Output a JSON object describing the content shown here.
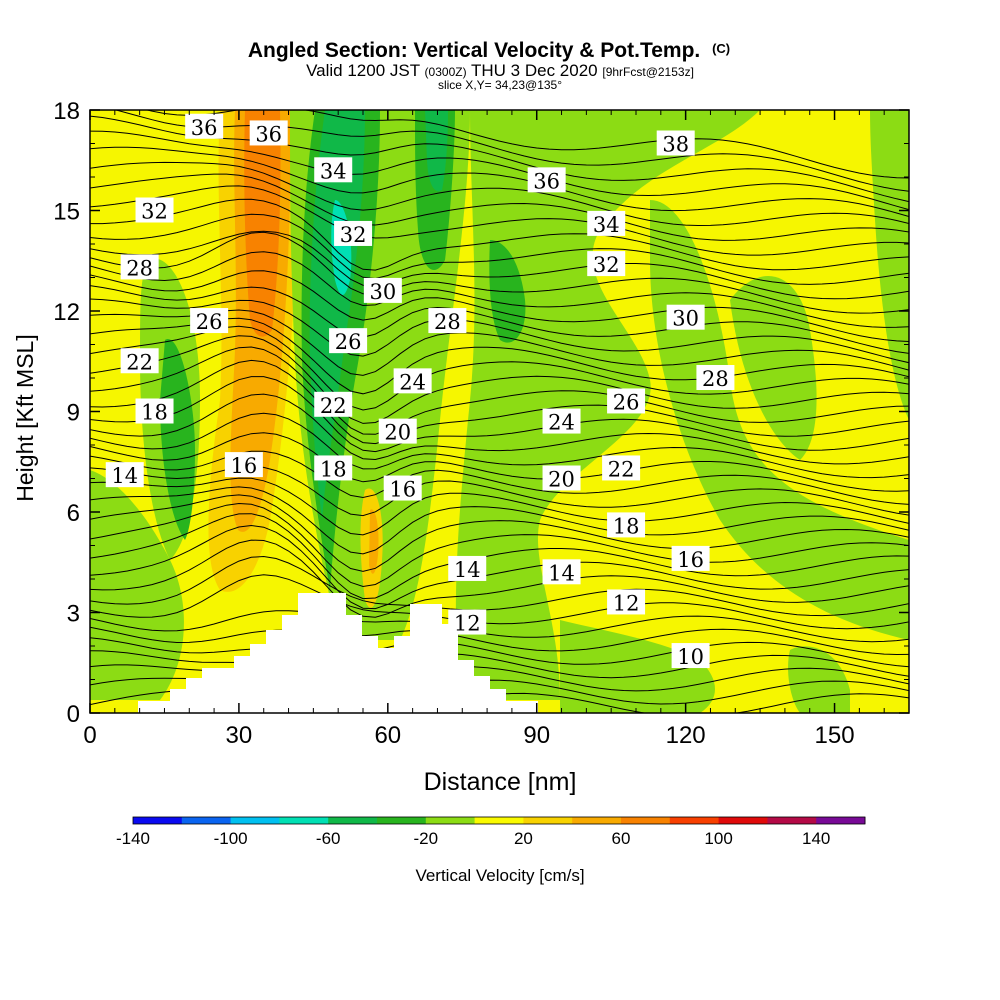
{
  "chart_data": {
    "type": "heatmap",
    "title": "Angled Section: Vertical Velocity & Pot.Temp.",
    "title_mark": "(C)",
    "subtitle_parts": [
      "Valid 1200 JST",
      "(0300Z)",
      "THU 3 Dec 2020",
      "[9hrFcst@2153z]"
    ],
    "slice_note": "slice X,Y= 34,23@135°",
    "xlabel": "Distance [nm]",
    "ylabel": "Height [Kft MSL]",
    "xlim": [
      0,
      165
    ],
    "ylim": [
      0,
      18
    ],
    "x_ticks": [
      "0",
      "30",
      "60",
      "90",
      "120",
      "150"
    ],
    "y_ticks": [
      "0",
      "3",
      "6",
      "9",
      "12",
      "15",
      "18"
    ],
    "colorbar": {
      "label": "Vertical Velocity [cm/s]",
      "tick_labels": [
        "-140",
        "-100",
        "-60",
        "-20",
        "20",
        "60",
        "100",
        "140"
      ],
      "colors": [
        "#0a0af0",
        "#0a64f0",
        "#00c0f0",
        "#00e0b4",
        "#10b848",
        "#28b41e",
        "#8cdc14",
        "#fafa00",
        "#f8d200",
        "#f8aa00",
        "#f88200",
        "#f84000",
        "#e00a0a",
        "#b40a46",
        "#780a96"
      ]
    },
    "contour_labels": [
      {
        "text": "36",
        "x": 23,
        "y": 17.5
      },
      {
        "text": "36",
        "x": 36,
        "y": 17.3
      },
      {
        "text": "34",
        "x": 49,
        "y": 16.2
      },
      {
        "text": "32",
        "x": 13,
        "y": 15.0
      },
      {
        "text": "32",
        "x": 53,
        "y": 14.3
      },
      {
        "text": "28",
        "x": 10,
        "y": 13.3
      },
      {
        "text": "30",
        "x": 59,
        "y": 12.6
      },
      {
        "text": "26",
        "x": 24,
        "y": 11.7
      },
      {
        "text": "28",
        "x": 72,
        "y": 11.7
      },
      {
        "text": "26",
        "x": 52,
        "y": 11.1
      },
      {
        "text": "22",
        "x": 10,
        "y": 10.5
      },
      {
        "text": "24",
        "x": 65,
        "y": 9.9
      },
      {
        "text": "22",
        "x": 49,
        "y": 9.2
      },
      {
        "text": "18",
        "x": 13,
        "y": 9.0
      },
      {
        "text": "20",
        "x": 62,
        "y": 8.4
      },
      {
        "text": "16",
        "x": 31,
        "y": 7.4
      },
      {
        "text": "18",
        "x": 49,
        "y": 7.3
      },
      {
        "text": "14",
        "x": 7,
        "y": 7.1
      },
      {
        "text": "16",
        "x": 63,
        "y": 6.7
      },
      {
        "text": "14",
        "x": 76,
        "y": 4.3
      },
      {
        "text": "12",
        "x": 76,
        "y": 2.7
      },
      {
        "text": "38",
        "x": 118,
        "y": 17.0
      },
      {
        "text": "36",
        "x": 92,
        "y": 15.9
      },
      {
        "text": "34",
        "x": 104,
        "y": 14.6
      },
      {
        "text": "32",
        "x": 104,
        "y": 13.4
      },
      {
        "text": "30",
        "x": 120,
        "y": 11.8
      },
      {
        "text": "28",
        "x": 126,
        "y": 10.0
      },
      {
        "text": "26",
        "x": 108,
        "y": 9.3
      },
      {
        "text": "24",
        "x": 95,
        "y": 8.7
      },
      {
        "text": "22",
        "x": 107,
        "y": 7.3
      },
      {
        "text": "20",
        "x": 95,
        "y": 7.0
      },
      {
        "text": "18",
        "x": 108,
        "y": 5.6
      },
      {
        "text": "16",
        "x": 121,
        "y": 4.6
      },
      {
        "text": "14",
        "x": 95,
        "y": 4.2
      },
      {
        "text": "12",
        "x": 108,
        "y": 3.3
      },
      {
        "text": "10",
        "x": 121,
        "y": 1.7
      }
    ]
  }
}
